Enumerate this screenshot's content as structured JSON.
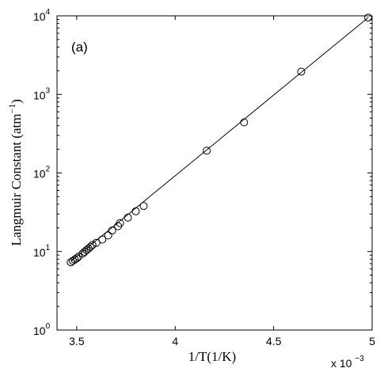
{
  "chart_data": {
    "type": "scatter",
    "panel_label": "(a)",
    "xlabel": "1/T(1/K)",
    "ylabel_main": "Langmuir Constant (atm",
    "ylabel_exp": "−1",
    "ylabel_close": ")",
    "x_multiplier_base": "x 10",
    "x_multiplier_exp": "−3",
    "xlim": [
      3.4,
      5.0
    ],
    "ylim": [
      1,
      10000
    ],
    "yscale": "log",
    "grid": false,
    "x_ticks": [
      {
        "value": 3.5,
        "label": "3.5"
      },
      {
        "value": 4.0,
        "label": "4"
      },
      {
        "value": 4.5,
        "label": "4.5"
      },
      {
        "value": 5.0,
        "label": "5"
      }
    ],
    "y_ticks": [
      {
        "value": 1,
        "base": "10",
        "exp": "0"
      },
      {
        "value": 10,
        "base": "10",
        "exp": "1"
      },
      {
        "value": 100,
        "base": "10",
        "exp": "2"
      },
      {
        "value": 1000,
        "base": "10",
        "exp": "3"
      },
      {
        "value": 10000,
        "base": "10",
        "exp": "4"
      }
    ],
    "fit_line": {
      "x": [
        3.47,
        4.98
      ],
      "y": [
        7.5,
        9500
      ]
    },
    "points": [
      {
        "x": 3.47,
        "y": 7.3
      },
      {
        "x": 3.48,
        "y": 7.6
      },
      {
        "x": 3.49,
        "y": 7.9
      },
      {
        "x": 3.5,
        "y": 8.2
      },
      {
        "x": 3.51,
        "y": 8.6
      },
      {
        "x": 3.53,
        "y": 9.4
      },
      {
        "x": 3.54,
        "y": 9.9
      },
      {
        "x": 3.55,
        "y": 10.4
      },
      {
        "x": 3.56,
        "y": 10.9
      },
      {
        "x": 3.57,
        "y": 11.5
      },
      {
        "x": 3.58,
        "y": 12.1
      },
      {
        "x": 3.6,
        "y": 12.9
      },
      {
        "x": 3.63,
        "y": 14.2
      },
      {
        "x": 3.66,
        "y": 16.0
      },
      {
        "x": 3.68,
        "y": 18.5
      },
      {
        "x": 3.71,
        "y": 21.0
      },
      {
        "x": 3.72,
        "y": 23.0
      },
      {
        "x": 3.76,
        "y": 27.0
      },
      {
        "x": 3.8,
        "y": 32.5
      },
      {
        "x": 3.84,
        "y": 38.0
      },
      {
        "x": 4.16,
        "y": 192
      },
      {
        "x": 4.35,
        "y": 440
      },
      {
        "x": 4.64,
        "y": 1950
      },
      {
        "x": 4.98,
        "y": 9500
      }
    ]
  }
}
